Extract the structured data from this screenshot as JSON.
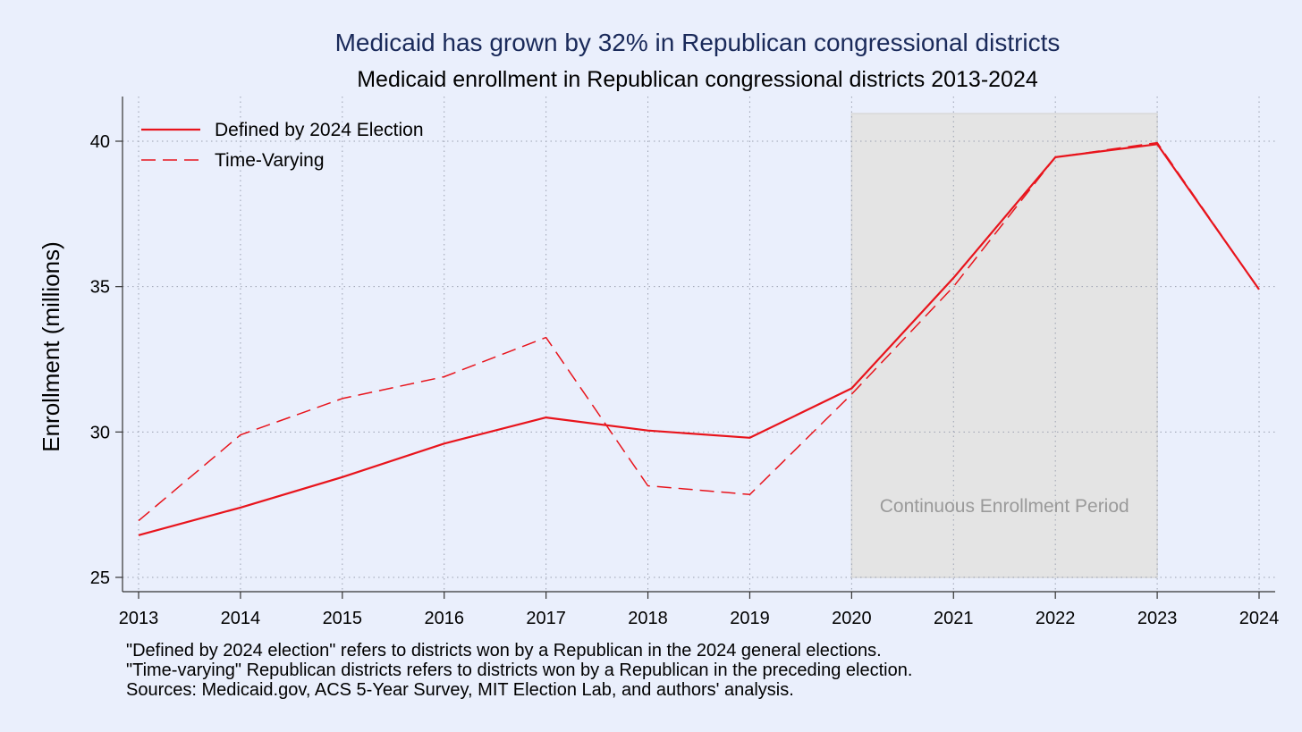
{
  "chart_data": {
    "type": "line",
    "title": "Medicaid has grown by 32% in Republican congressional districts",
    "subtitle": "Medicaid enrollment in Republican congressional districts 2013-2024",
    "xlabel": "",
    "ylabel": "Enrollment (millions)",
    "x": [
      2013,
      2014,
      2015,
      2016,
      2017,
      2018,
      2019,
      2020,
      2021,
      2022,
      2023,
      2024
    ],
    "xlim": [
      2013,
      2024
    ],
    "ylim": [
      24.6,
      41.5
    ],
    "yticks": [
      25,
      30,
      35,
      40
    ],
    "grid": true,
    "legend_position": "top-left",
    "series": [
      {
        "name": "Defined by 2024 Election",
        "style": "solid",
        "color": "#e8141c",
        "values": [
          26.45,
          27.4,
          28.45,
          29.6,
          30.5,
          30.05,
          29.8,
          31.5,
          35.3,
          39.45,
          39.9,
          34.9
        ]
      },
      {
        "name": "Time-Varying",
        "style": "dashed",
        "color": "#e8141c",
        "values": [
          26.95,
          29.9,
          31.15,
          31.9,
          33.25,
          28.15,
          27.85,
          31.3,
          35.0,
          39.45,
          39.95,
          34.9
        ]
      }
    ],
    "shaded_region": {
      "label": "Continuous Enrollment Period",
      "x_start": 2020,
      "x_end": 2023,
      "y_start": 25,
      "y_end": 40.95,
      "color": "#e4e4e4"
    },
    "notes": [
      "\"Defined by 2024 election\" refers to districts won by a Republican in the 2024 general elections.",
      "\"Time-varying\" Republican districts refers to districts won by a Republican in the preceding election.",
      "Sources: Medicaid.gov, ACS 5-Year Survey, MIT Election Lab, and authors' analysis."
    ]
  }
}
